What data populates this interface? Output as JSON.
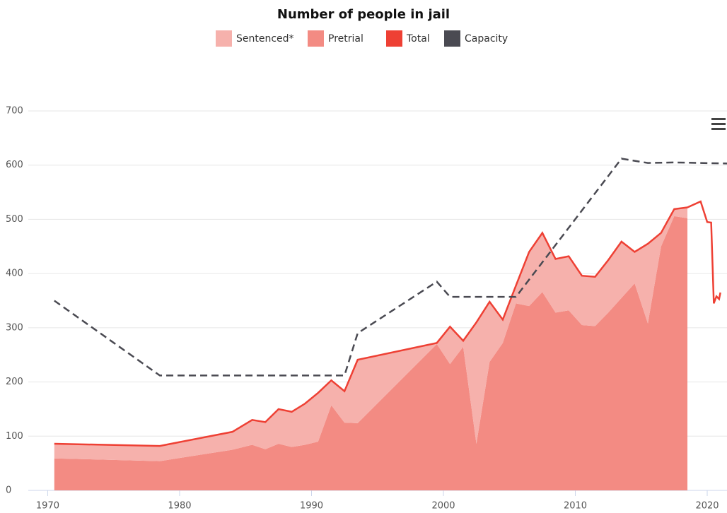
{
  "chart_data": {
    "type": "area",
    "title": "Number of people in jail",
    "x": [
      1970.5,
      1978.5,
      1984,
      1985.5,
      1986.5,
      1987.5,
      1988.5,
      1989.5,
      1990.5,
      1991.5,
      1992.5,
      1993.5,
      1999.5,
      2000.5,
      2001.5,
      2002.5,
      2003.5,
      2004.5,
      2005.5,
      2006.5,
      2007.5,
      2008.5,
      2009.5,
      2010.5,
      2011.5,
      2012.5,
      2013.5,
      2014.5,
      2015.5,
      2016.5,
      2017.5,
      2018.5,
      2019.5,
      2020,
      2020.3,
      2020.5,
      2020.7,
      2020.9,
      2021
    ],
    "series": [
      {
        "name": "Sentenced*",
        "color": "#f6b1ac",
        "stack": true,
        "values": [
          27,
          28,
          33,
          46,
          50,
          64,
          65,
          76,
          90,
          46,
          58,
          117,
          2,
          69,
          11,
          224,
          111,
          43,
          33,
          100,
          109,
          99,
          100,
          91,
          91,
          97,
          104,
          58,
          147,
          25,
          13,
          20,
          null,
          null,
          null,
          null,
          null,
          null,
          null
        ]
      },
      {
        "name": "Pretrial",
        "color": "#f38b83",
        "stack": true,
        "values": [
          59,
          54,
          75,
          84,
          76,
          86,
          80,
          84,
          90,
          157,
          125,
          124,
          270,
          233,
          265,
          86,
          237,
          272,
          345,
          340,
          366,
          328,
          332,
          305,
          303,
          328,
          355,
          382,
          308,
          450,
          506,
          502,
          null,
          null,
          null,
          null,
          null,
          null,
          null
        ]
      },
      {
        "name": "Total",
        "color": "#ee4034",
        "values": [
          86,
          82,
          108,
          130,
          126,
          150,
          145,
          160,
          180,
          203,
          183,
          241,
          272,
          302,
          276,
          310,
          348,
          315,
          378,
          440,
          475,
          427,
          432,
          396,
          394,
          425,
          459,
          440,
          455,
          475,
          519,
          522,
          533,
          495,
          494,
          345,
          358,
          353,
          365
        ]
      },
      {
        "name": "Capacity",
        "color": "#4a4a52",
        "dashed": true,
        "x": [
          1970.5,
          1978.5,
          1992.5,
          1993.5,
          1999.5,
          2000.5,
          2005.5,
          2013.5,
          2015.5,
          2017.5,
          2021.5
        ],
        "values": [
          350,
          212,
          212,
          290,
          385,
          357,
          357,
          612,
          604,
          605,
          603
        ]
      }
    ],
    "xlim": [
      1969.6,
      2021.5
    ],
    "xticks": [
      1970,
      1980,
      1990,
      2000,
      2010,
      2020
    ],
    "ylim": [
      0,
      700
    ],
    "yticks": [
      0,
      100,
      200,
      300,
      400,
      500,
      600,
      700
    ],
    "grid": true
  }
}
